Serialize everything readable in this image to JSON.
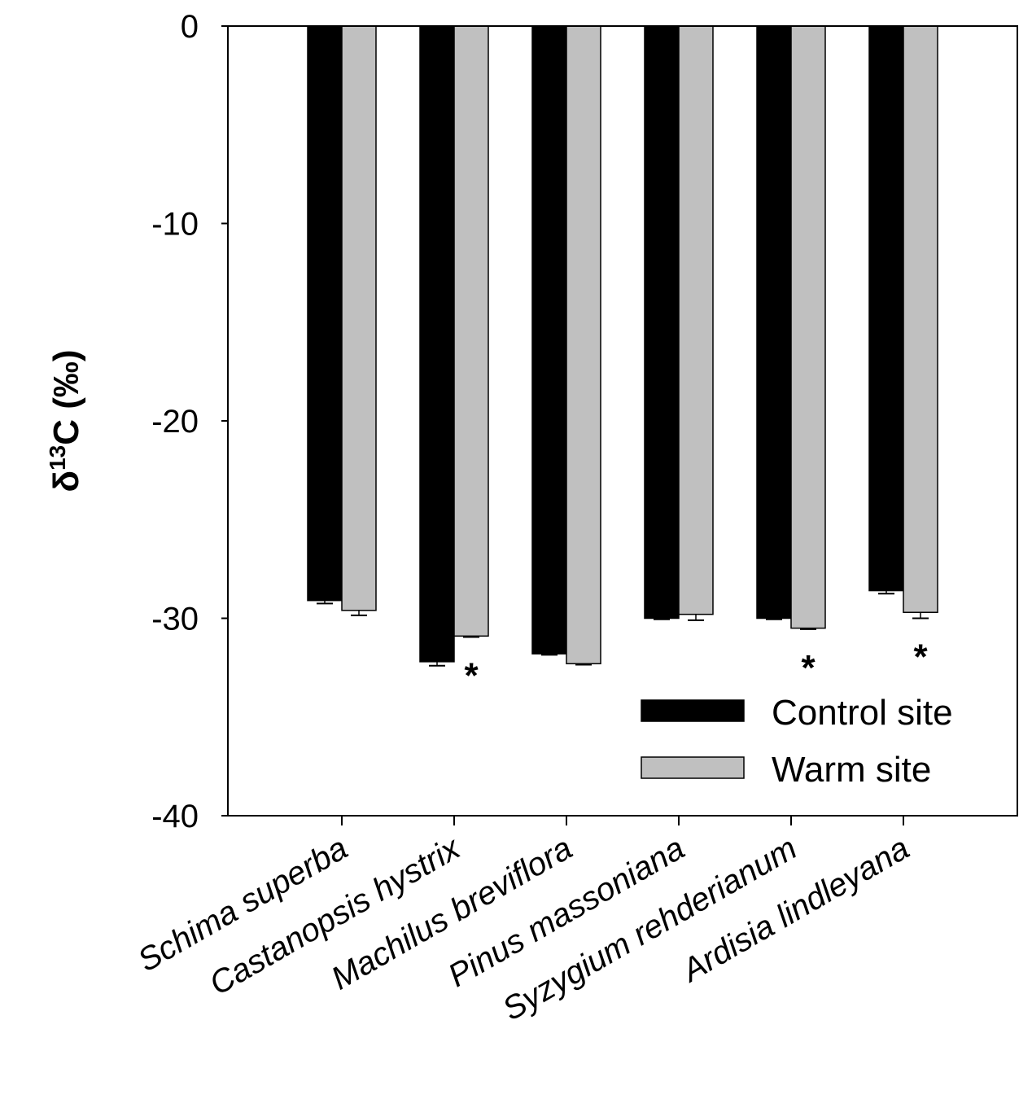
{
  "chart_data": {
    "type": "bar",
    "title": "",
    "xlabel": "",
    "ylabel": {
      "prefix": "δ",
      "superscript": "13",
      "suffix": "C (‰)"
    },
    "ylim": [
      -40,
      0
    ],
    "yticks": [
      0,
      -10,
      -20,
      -30,
      -40
    ],
    "ytick_labels": [
      "0",
      "-10",
      "-20",
      "-30",
      "-40"
    ],
    "categories": [
      "Schima superba",
      "Castanopsis hystrix",
      "Machilus breviflora",
      "Pinus massoniana",
      "Syzygium rehderianum",
      "Ardisia lindleyana"
    ],
    "series": [
      {
        "name": "Control site",
        "color": "#000000",
        "values": [
          -29.1,
          -32.2,
          -31.8,
          -30.0,
          -30.0,
          -28.6
        ],
        "errors": [
          0.15,
          0.2,
          0.05,
          0.05,
          0.05,
          0.15
        ]
      },
      {
        "name": "Warm site",
        "color": "#c0c0c0",
        "values": [
          -29.6,
          -30.9,
          -32.3,
          -29.8,
          -30.5,
          -29.7
        ],
        "errors": [
          0.25,
          0.05,
          0.05,
          0.3,
          0.05,
          0.3
        ]
      }
    ],
    "annotations": [
      {
        "category": "Castanopsis hystrix",
        "text": "*"
      },
      {
        "category": "Syzygium rehderianum",
        "text": "*"
      },
      {
        "category": "Ardisia lindleyana",
        "text": "*"
      }
    ],
    "legend": {
      "placement": "bottom-right",
      "entries": [
        "Control site",
        "Warm site"
      ]
    },
    "grid": false
  }
}
